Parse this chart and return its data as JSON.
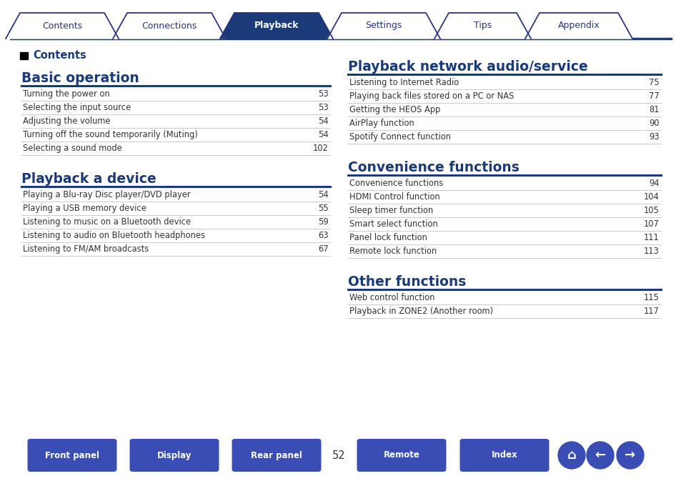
{
  "bg_color": "#ffffff",
  "nav_tabs": [
    "Contents",
    "Connections",
    "Playback",
    "Settings",
    "Tips",
    "Appendix"
  ],
  "nav_active": 2,
  "nav_tab_color_active": "#1a3a7a",
  "nav_tab_color_inactive": "#ffffff",
  "nav_text_color_active": "#ffffff",
  "nav_text_color_inactive": "#2a3580",
  "nav_border_color": "#2a3580",
  "nav_line_color": "#1a3a7a",
  "contents_header": "Contents",
  "section1_title": "Basic operation",
  "section1_items": [
    [
      "Turning the power on",
      "53"
    ],
    [
      "Selecting the input source",
      "53"
    ],
    [
      "Adjusting the volume",
      "54"
    ],
    [
      "Turning off the sound temporarily (Muting)",
      "54"
    ],
    [
      "Selecting a sound mode",
      "102"
    ]
  ],
  "section2_title": "Playback a device",
  "section2_items": [
    [
      "Playing a Blu-ray Disc player/DVD player",
      "54"
    ],
    [
      "Playing a USB memory device",
      "55"
    ],
    [
      "Listening to music on a Bluetooth device",
      "59"
    ],
    [
      "Listening to audio on Bluetooth headphones",
      "63"
    ],
    [
      "Listening to FM/AM broadcasts",
      "67"
    ]
  ],
  "section3_title": "Playback network audio/service",
  "section3_items": [
    [
      "Listening to Internet Radio",
      "75"
    ],
    [
      "Playing back files stored on a PC or NAS",
      "77"
    ],
    [
      "Getting the HEOS App",
      "81"
    ],
    [
      "AirPlay function",
      "90"
    ],
    [
      "Spotify Connect function",
      "93"
    ]
  ],
  "section4_title": "Convenience functions",
  "section4_items": [
    [
      "Convenience functions",
      "94"
    ],
    [
      "HDMI Control function",
      "104"
    ],
    [
      "Sleep timer function",
      "105"
    ],
    [
      "Smart select function",
      "107"
    ],
    [
      "Panel lock function",
      "111"
    ],
    [
      "Remote lock function",
      "113"
    ]
  ],
  "section5_title": "Other functions",
  "section5_items": [
    [
      "Web control function",
      "115"
    ],
    [
      "Playback in ZONE2 (Another room)",
      "117"
    ]
  ],
  "footer_buttons": [
    "Front panel",
    "Display",
    "Rear panel",
    "Remote",
    "Index"
  ],
  "footer_page": "52",
  "title_color": "#1a3a7a",
  "text_color": "#333333",
  "line_color": "#cccccc",
  "dark_line_color": "#1a3a7a",
  "button_color": "#3a4db5",
  "button_text_color": "#ffffff"
}
